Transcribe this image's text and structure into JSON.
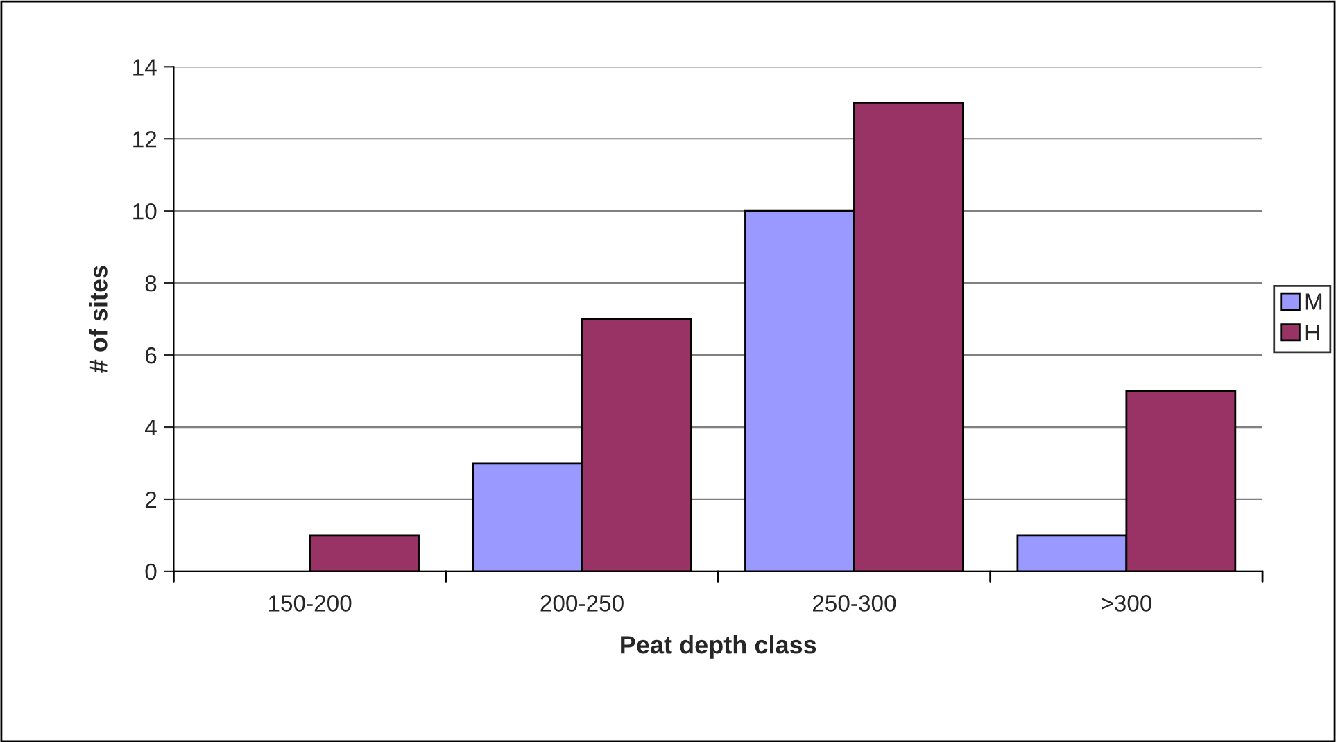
{
  "chart_data": {
    "type": "bar",
    "xlabel": "Peat depth class",
    "ylabel": "# of sites",
    "categories": [
      "150-200",
      "200-250",
      "250-300",
      ">300"
    ],
    "series": [
      {
        "name": "M",
        "color": "#9999ff",
        "values": [
          0,
          3,
          10,
          1
        ]
      },
      {
        "name": "H",
        "color": "#993366",
        "values": [
          1,
          7,
          13,
          5
        ]
      }
    ],
    "ylim": [
      0,
      14
    ],
    "yticks": [
      0,
      2,
      4,
      6,
      8,
      10,
      12,
      14
    ],
    "grid": "y",
    "legend": "right"
  }
}
